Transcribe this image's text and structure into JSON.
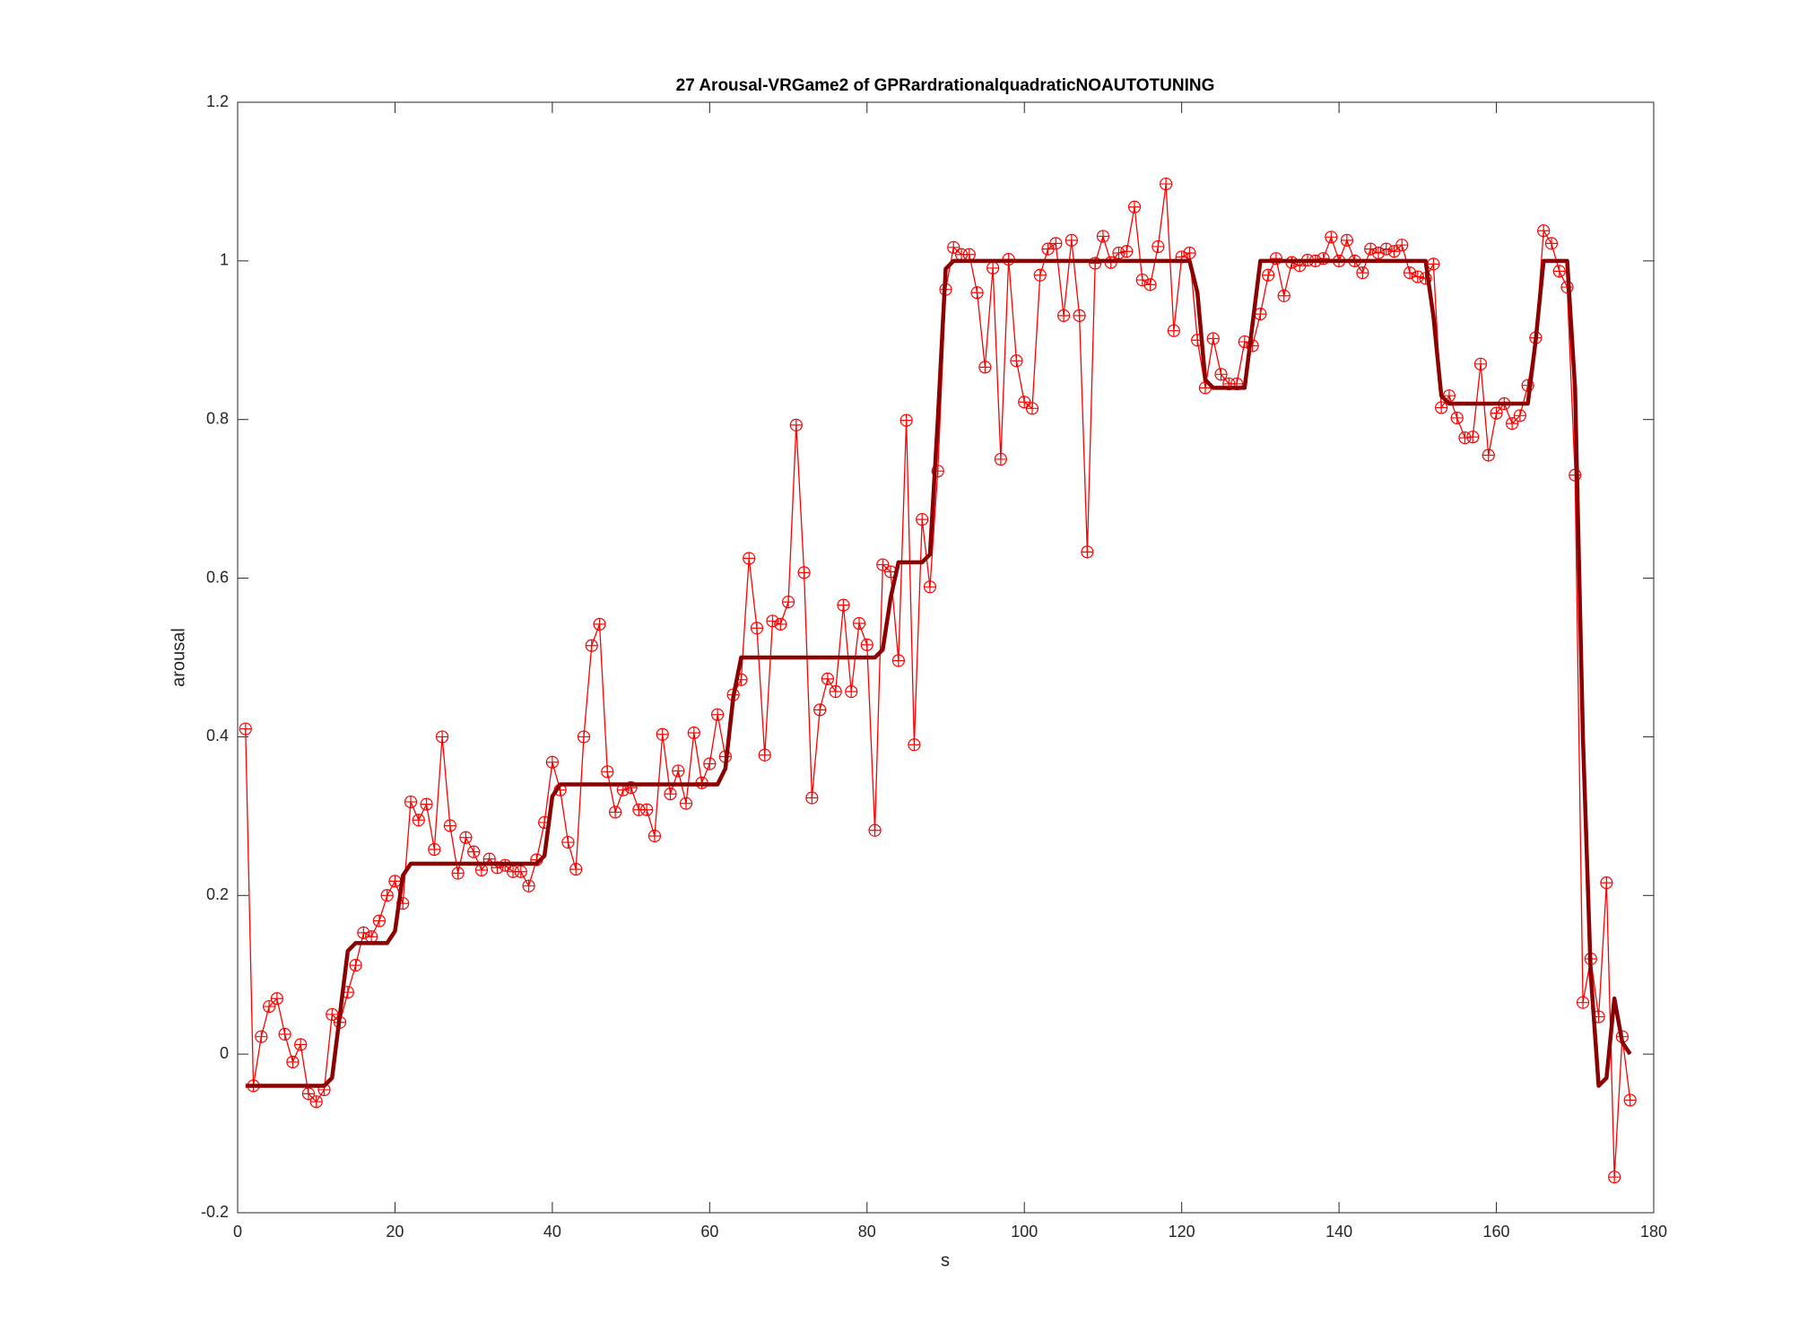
{
  "chart_data": {
    "type": "line",
    "title": "27 Arousal-VRGame2 of GPRardrationalquadraticNOAUTOTUNING",
    "x_label": "s",
    "y_label": "arousal",
    "xlim": [
      0,
      180
    ],
    "xticks": [
      0,
      20,
      40,
      60,
      80,
      100,
      120,
      140,
      160,
      180
    ],
    "ylim": [
      -0.2,
      1.2
    ],
    "yticks": [
      -0.2,
      0,
      0.2,
      0.4,
      0.6,
      0.8,
      1,
      1.2
    ],
    "x": [
      1,
      2,
      3,
      4,
      5,
      6,
      7,
      8,
      9,
      10,
      11,
      12,
      13,
      14,
      15,
      16,
      17,
      18,
      19,
      20,
      21,
      22,
      23,
      24,
      25,
      26,
      27,
      28,
      29,
      30,
      31,
      32,
      33,
      34,
      35,
      36,
      37,
      38,
      39,
      40,
      41,
      42,
      43,
      44,
      45,
      46,
      47,
      48,
      49,
      50,
      51,
      52,
      53,
      54,
      55,
      56,
      57,
      58,
      59,
      60,
      61,
      62,
      63,
      64,
      65,
      66,
      67,
      68,
      69,
      70,
      71,
      72,
      73,
      74,
      75,
      76,
      77,
      78,
      79,
      80,
      81,
      82,
      83,
      84,
      85,
      86,
      87,
      88,
      89,
      90,
      91,
      92,
      93,
      94,
      95,
      96,
      97,
      98,
      99,
      100,
      101,
      102,
      103,
      104,
      105,
      106,
      107,
      108,
      109,
      110,
      111,
      112,
      113,
      114,
      115,
      116,
      117,
      118,
      119,
      120,
      121,
      122,
      123,
      124,
      125,
      126,
      127,
      128,
      129,
      130,
      131,
      132,
      133,
      134,
      135,
      136,
      137,
      138,
      139,
      140,
      141,
      142,
      143,
      144,
      145,
      146,
      147,
      148,
      149,
      150,
      151,
      152,
      153,
      154,
      155,
      156,
      157,
      158,
      159,
      160,
      161,
      162,
      163,
      164,
      165,
      166,
      167,
      168,
      169,
      170,
      171,
      172,
      173,
      174,
      175,
      176,
      177
    ],
    "series": [
      {
        "color": "#ff0000",
        "marker": "circle-plus",
        "values": [
          0.41,
          -0.04,
          0.022,
          0.06,
          0.07,
          0.025,
          -0.01,
          0.012,
          -0.05,
          -0.06,
          -0.045,
          0.05,
          0.04,
          0.078,
          0.112,
          0.153,
          0.148,
          0.168,
          0.2,
          0.218,
          0.19,
          0.318,
          0.295,
          0.315,
          0.258,
          0.4,
          0.288,
          0.228,
          0.273,
          0.255,
          0.232,
          0.246,
          0.235,
          0.238,
          0.23,
          0.23,
          0.212,
          0.245,
          0.292,
          0.368,
          0.333,
          0.267,
          0.233,
          0.4,
          0.515,
          0.542,
          0.356,
          0.305,
          0.333,
          0.336,
          0.308,
          0.308,
          0.275,
          0.403,
          0.328,
          0.357,
          0.316,
          0.405,
          0.342,
          0.366,
          0.428,
          0.375,
          0.453,
          0.472,
          0.625,
          0.537,
          0.377,
          0.546,
          0.542,
          0.57,
          0.793,
          0.607,
          0.323,
          0.434,
          0.473,
          0.457,
          0.566,
          0.457,
          0.543,
          0.516,
          0.282,
          0.617,
          0.608,
          0.496,
          0.799,
          0.39,
          0.674,
          0.589,
          0.735,
          0.964,
          1.017,
          1.008,
          1.008,
          0.96,
          0.866,
          0.991,
          0.75,
          1.002,
          0.874,
          0.822,
          0.814,
          0.982,
          1.015,
          1.022,
          0.931,
          1.026,
          0.931,
          0.633,
          0.997,
          1.031,
          0.998,
          1.01,
          1.012,
          1.068,
          0.976,
          0.97,
          1.018,
          1.097,
          0.912,
          1.005,
          1.01,
          0.9,
          0.84,
          0.902,
          0.857,
          0.845,
          0.845,
          0.898,
          0.893,
          0.933,
          0.982,
          1.003,
          0.956,
          0.998,
          0.994,
          1.001,
          1.0,
          1.003,
          1.03,
          1.0,
          1.026,
          1.0,
          0.985,
          1.015,
          1.01,
          1.015,
          1.012,
          1.02,
          0.985,
          0.98,
          0.978,
          0.996,
          0.815,
          0.83,
          0.802,
          0.777,
          0.778,
          0.87,
          0.755,
          0.808,
          0.82,
          0.795,
          0.805,
          0.843,
          0.903,
          1.038,
          1.022,
          0.987,
          0.967,
          0.73,
          0.065,
          0.12,
          0.047,
          0.216,
          -0.155,
          0.022,
          -0.058
        ]
      },
      {
        "color": "#8b0000",
        "values": [
          -0.04,
          -0.04,
          -0.04,
          -0.04,
          -0.04,
          -0.04,
          -0.04,
          -0.04,
          -0.04,
          -0.04,
          -0.04,
          -0.03,
          0.05,
          0.13,
          0.14,
          0.14,
          0.14,
          0.14,
          0.14,
          0.155,
          0.225,
          0.24,
          0.24,
          0.24,
          0.24,
          0.24,
          0.24,
          0.24,
          0.24,
          0.24,
          0.24,
          0.24,
          0.24,
          0.24,
          0.24,
          0.24,
          0.24,
          0.24,
          0.25,
          0.325,
          0.34,
          0.34,
          0.34,
          0.34,
          0.34,
          0.34,
          0.34,
          0.34,
          0.34,
          0.34,
          0.34,
          0.34,
          0.34,
          0.34,
          0.34,
          0.34,
          0.34,
          0.34,
          0.34,
          0.34,
          0.34,
          0.36,
          0.45,
          0.5,
          0.5,
          0.5,
          0.5,
          0.5,
          0.5,
          0.5,
          0.5,
          0.5,
          0.5,
          0.5,
          0.5,
          0.5,
          0.5,
          0.5,
          0.5,
          0.5,
          0.5,
          0.51,
          0.575,
          0.62,
          0.62,
          0.62,
          0.62,
          0.63,
          0.8,
          0.99,
          1.0,
          1.0,
          1.0,
          1.0,
          1.0,
          1.0,
          1.0,
          1.0,
          1.0,
          1.0,
          1.0,
          1.0,
          1.0,
          1.0,
          1.0,
          1.0,
          1.0,
          1.0,
          1.0,
          1.0,
          1.0,
          1.0,
          1.0,
          1.0,
          1.0,
          1.0,
          1.0,
          1.0,
          1.0,
          1.0,
          1.0,
          0.96,
          0.85,
          0.84,
          0.84,
          0.84,
          0.84,
          0.84,
          0.92,
          1.0,
          1.0,
          1.0,
          1.0,
          1.0,
          1.0,
          1.0,
          1.0,
          1.0,
          1.0,
          1.0,
          1.0,
          1.0,
          1.0,
          1.0,
          1.0,
          1.0,
          1.0,
          1.0,
          1.0,
          1.0,
          1.0,
          0.93,
          0.83,
          0.82,
          0.82,
          0.82,
          0.82,
          0.82,
          0.82,
          0.82,
          0.82,
          0.82,
          0.82,
          0.82,
          0.9,
          1.0,
          1.0,
          1.0,
          1.0,
          0.84,
          0.4,
          0.1,
          -0.04,
          -0.03,
          0.07,
          0.015,
          0.0
        ]
      }
    ]
  }
}
